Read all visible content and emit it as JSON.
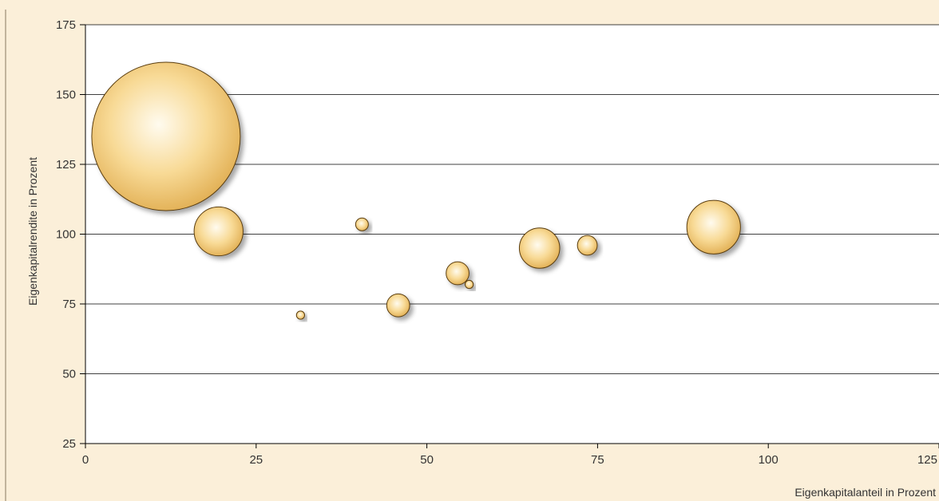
{
  "chart_data": {
    "type": "scatter",
    "subtype": "bubble",
    "xlabel": "Eigenkapitalanteil in Prozent",
    "ylabel": "Eigenkapitalrendite in Prozent",
    "xlim": [
      0,
      125
    ],
    "ylim": [
      25,
      175
    ],
    "xticks": [
      0,
      25,
      50,
      75,
      100,
      125
    ],
    "yticks": [
      25,
      50,
      75,
      100,
      125,
      150,
      175
    ],
    "grid": "horizontal",
    "colors": {
      "panel": "#FBEFD9",
      "bubble_highlight": "#FFFBEF",
      "bubble_mid": "#F8DA96",
      "bubble_edge": "#E2B055",
      "grid": "#000000"
    },
    "points": [
      {
        "x": 11.8,
        "y": 135,
        "size": 2300
      },
      {
        "x": 19.5,
        "y": 101,
        "size": 250
      },
      {
        "x": 31.5,
        "y": 71,
        "size": 7
      },
      {
        "x": 40.5,
        "y": 103.5,
        "size": 17
      },
      {
        "x": 45.8,
        "y": 74.5,
        "size": 55
      },
      {
        "x": 54.5,
        "y": 86,
        "size": 55
      },
      {
        "x": 56.2,
        "y": 82,
        "size": 7
      },
      {
        "x": 66.5,
        "y": 95,
        "size": 170
      },
      {
        "x": 73.5,
        "y": 96,
        "size": 41
      },
      {
        "x": 92,
        "y": 102.5,
        "size": 300
      }
    ]
  }
}
